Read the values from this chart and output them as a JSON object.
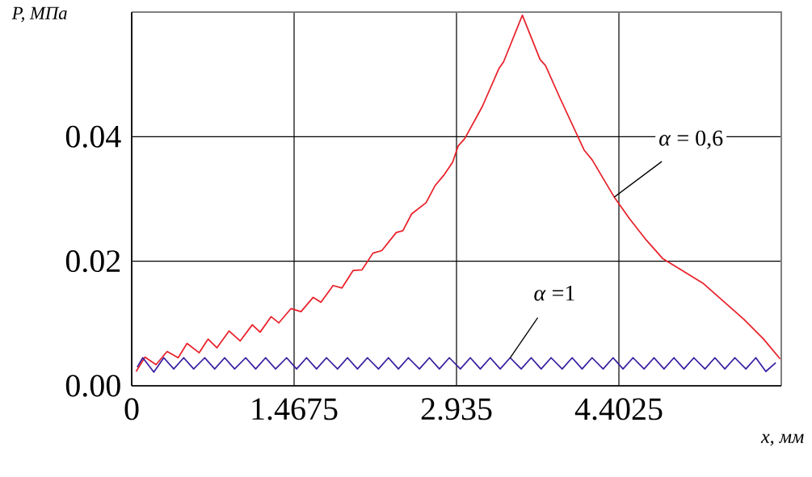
{
  "chart_data": {
    "type": "line",
    "xlabel": "*x, мм*",
    "ylabel": "*P, МПа*",
    "xlim": [
      0,
      5.87
    ],
    "ylim": [
      0,
      0.06
    ],
    "xticks": [
      0,
      1.4675,
      2.935,
      4.4025
    ],
    "yticks": [
      {
        "value": 0,
        "label": "0.00"
      },
      {
        "value": 0.02,
        "label": "0.02"
      },
      {
        "value": 0.04,
        "label": "0.04"
      }
    ],
    "grid": true,
    "marker": "none",
    "line_style": "solid",
    "series": [
      {
        "color": "#e8212a",
        "x": [
          0.04,
          0.12,
          0.22,
          0.32,
          0.42,
          0.5,
          0.61,
          0.69,
          0.77,
          0.88,
          0.98,
          1.09,
          1.16,
          1.26,
          1.33,
          1.44,
          1.53,
          1.64,
          1.71,
          1.82,
          1.9,
          2.0,
          2.08,
          2.18,
          2.26,
          2.39,
          2.45,
          2.53,
          2.66,
          2.74,
          2.82,
          2.9,
          2.95,
          3.01,
          3.17,
          3.32,
          3.36,
          3.53,
          3.69,
          3.74,
          3.87,
          4.09,
          4.16,
          4.36,
          4.5,
          4.65,
          4.8,
          5.16,
          5.53,
          5.71,
          5.86
        ],
        "values": [
          0.0023,
          0.0046,
          0.0034,
          0.0055,
          0.0045,
          0.0068,
          0.0053,
          0.0075,
          0.0061,
          0.0088,
          0.0072,
          0.0098,
          0.0086,
          0.0111,
          0.0101,
          0.0124,
          0.0119,
          0.0142,
          0.0134,
          0.0161,
          0.0157,
          0.0185,
          0.0186,
          0.0213,
          0.0217,
          0.0246,
          0.0249,
          0.0276,
          0.0294,
          0.0321,
          0.0338,
          0.0359,
          0.0385,
          0.0397,
          0.0449,
          0.051,
          0.052,
          0.0595,
          0.0524,
          0.0514,
          0.0462,
          0.0378,
          0.0363,
          0.0303,
          0.0268,
          0.0234,
          0.0204,
          0.0165,
          0.0107,
          0.0075,
          0.0043
        ]
      },
      {
        "color": "#3a1fa0",
        "x": [
          0.05,
          0.1,
          0.2,
          0.29,
          0.38,
          0.47,
          0.56,
          0.66,
          0.75,
          0.84,
          0.93,
          1.03,
          1.12,
          1.21,
          1.3,
          1.4,
          1.49,
          1.58,
          1.67,
          1.76,
          1.86,
          1.95,
          2.04,
          2.13,
          2.23,
          2.32,
          2.41,
          2.5,
          2.6,
          2.69,
          2.78,
          2.87,
          2.97,
          3.06,
          3.15,
          3.24,
          3.33,
          3.42,
          3.52,
          3.61,
          3.7,
          3.79,
          3.89,
          3.98,
          4.07,
          4.16,
          4.26,
          4.35,
          4.44,
          4.53,
          4.63,
          4.72,
          4.81,
          4.9,
          4.99,
          5.08,
          5.18,
          5.27,
          5.36,
          5.45,
          5.55,
          5.64,
          5.73,
          5.82
        ],
        "values": [
          0.003,
          0.0045,
          0.0022,
          0.0045,
          0.0027,
          0.0045,
          0.0027,
          0.0045,
          0.0027,
          0.0045,
          0.0027,
          0.0045,
          0.0027,
          0.0045,
          0.0027,
          0.0045,
          0.0027,
          0.0045,
          0.0027,
          0.0045,
          0.0027,
          0.0045,
          0.0027,
          0.0045,
          0.0027,
          0.0045,
          0.0027,
          0.0045,
          0.0027,
          0.0045,
          0.0027,
          0.0045,
          0.0027,
          0.0045,
          0.0027,
          0.0045,
          0.0027,
          0.0045,
          0.0027,
          0.0045,
          0.0027,
          0.0045,
          0.0027,
          0.0045,
          0.0027,
          0.0045,
          0.0027,
          0.0045,
          0.0027,
          0.0045,
          0.0027,
          0.0045,
          0.0027,
          0.0045,
          0.0027,
          0.0045,
          0.0027,
          0.0045,
          0.0027,
          0.0045,
          0.0027,
          0.0045,
          0.0023,
          0.0037
        ]
      }
    ],
    "annotations": [
      {
        "text": "*α* = 0,6",
        "x": 4.36,
        "y": 0.0303
      },
      {
        "text": "*α* =1",
        "x": 3.42,
        "y": 0.0045
      }
    ]
  }
}
